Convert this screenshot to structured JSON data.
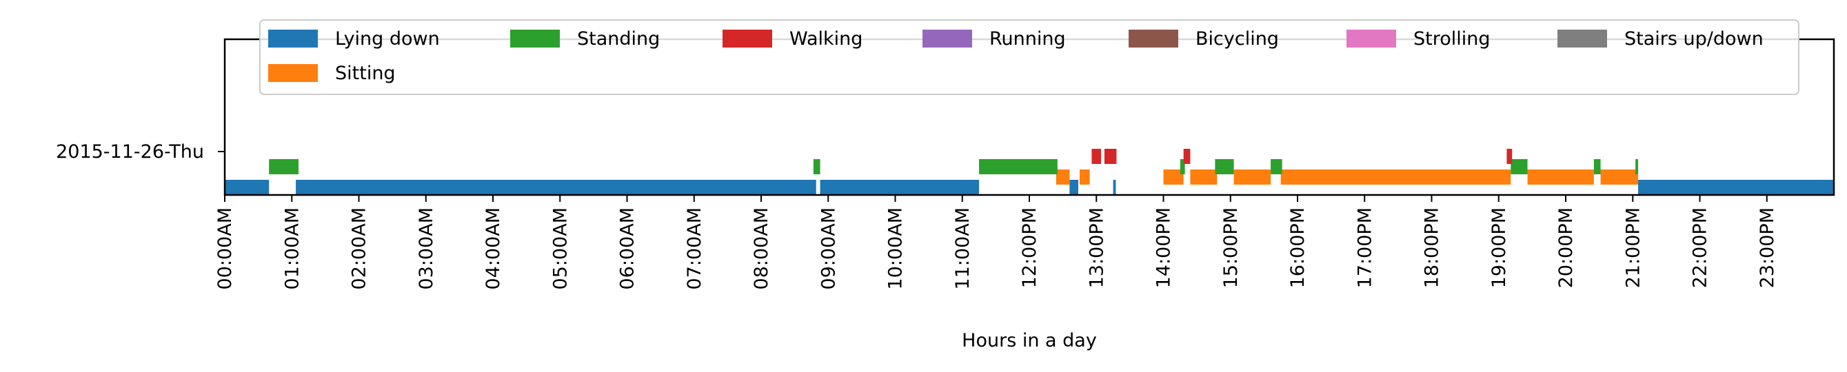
{
  "chart_data": {
    "type": "timeline",
    "xlabel": "Hours in a day",
    "ylabel": "",
    "title": "",
    "xlim": [
      0,
      24
    ],
    "y_categories": [
      "2015-11-26-Thu"
    ],
    "x_ticks": [
      0,
      1,
      2,
      3,
      4,
      5,
      6,
      7,
      8,
      9,
      10,
      11,
      12,
      13,
      14,
      15,
      16,
      17,
      18,
      19,
      20,
      21,
      22,
      23
    ],
    "x_tick_labels": [
      "00:00AM",
      "01:00AM",
      "02:00AM",
      "03:00AM",
      "04:00AM",
      "05:00AM",
      "06:00AM",
      "07:00AM",
      "08:00AM",
      "09:00AM",
      "10:00AM",
      "11:00AM",
      "12:00PM",
      "13:00PM",
      "14:00PM",
      "15:00PM",
      "16:00PM",
      "17:00PM",
      "18:00PM",
      "19:00PM",
      "20:00PM",
      "21:00PM",
      "22:00PM",
      "23:00PM"
    ],
    "legend": {
      "placement": "top-center",
      "entries": [
        {
          "name": "Lying down",
          "color": "#1f77b4"
        },
        {
          "name": "Standing",
          "color": "#2ca02c"
        },
        {
          "name": "Walking",
          "color": "#d62728"
        },
        {
          "name": "Running",
          "color": "#9467bd"
        },
        {
          "name": "Bicycling",
          "color": "#8c564b"
        },
        {
          "name": "Strolling",
          "color": "#e377c2"
        },
        {
          "name": "Stairs up/down",
          "color": "#7f7f7f"
        },
        {
          "name": "Sitting",
          "color": "#ff7f0e"
        }
      ]
    },
    "series": [
      {
        "name": "Lying down",
        "level": 0,
        "intervals": [
          [
            0.0,
            0.66
          ],
          [
            1.06,
            8.82
          ],
          [
            8.88,
            11.25
          ],
          [
            12.6,
            12.73
          ],
          [
            13.25,
            13.29
          ],
          [
            21.08,
            24.0
          ]
        ]
      },
      {
        "name": "Sitting",
        "level": 1,
        "intervals": [
          [
            12.4,
            12.6
          ],
          [
            12.75,
            12.9
          ],
          [
            14.0,
            14.3
          ],
          [
            14.4,
            14.8
          ],
          [
            15.05,
            15.6
          ],
          [
            15.75,
            19.18
          ],
          [
            19.43,
            20.42
          ],
          [
            20.52,
            21.08
          ]
        ]
      },
      {
        "name": "Standing",
        "level": 2,
        "intervals": [
          [
            0.66,
            1.1
          ],
          [
            8.78,
            8.88
          ],
          [
            11.25,
            12.42
          ],
          [
            14.25,
            14.32
          ],
          [
            14.77,
            15.05
          ],
          [
            15.6,
            15.77
          ],
          [
            19.18,
            19.43
          ],
          [
            20.42,
            20.52
          ],
          [
            21.04,
            21.08
          ]
        ]
      },
      {
        "name": "Walking",
        "level": 3,
        "intervals": [
          [
            12.93,
            13.07
          ],
          [
            13.12,
            13.3
          ],
          [
            14.3,
            14.4
          ],
          [
            19.12,
            19.2
          ]
        ]
      },
      {
        "name": "Running",
        "level": 4,
        "intervals": []
      },
      {
        "name": "Bicycling",
        "level": 5,
        "intervals": []
      },
      {
        "name": "Strolling",
        "level": 6,
        "intervals": []
      },
      {
        "name": "Stairs up/down",
        "level": 7,
        "intervals": []
      }
    ]
  }
}
